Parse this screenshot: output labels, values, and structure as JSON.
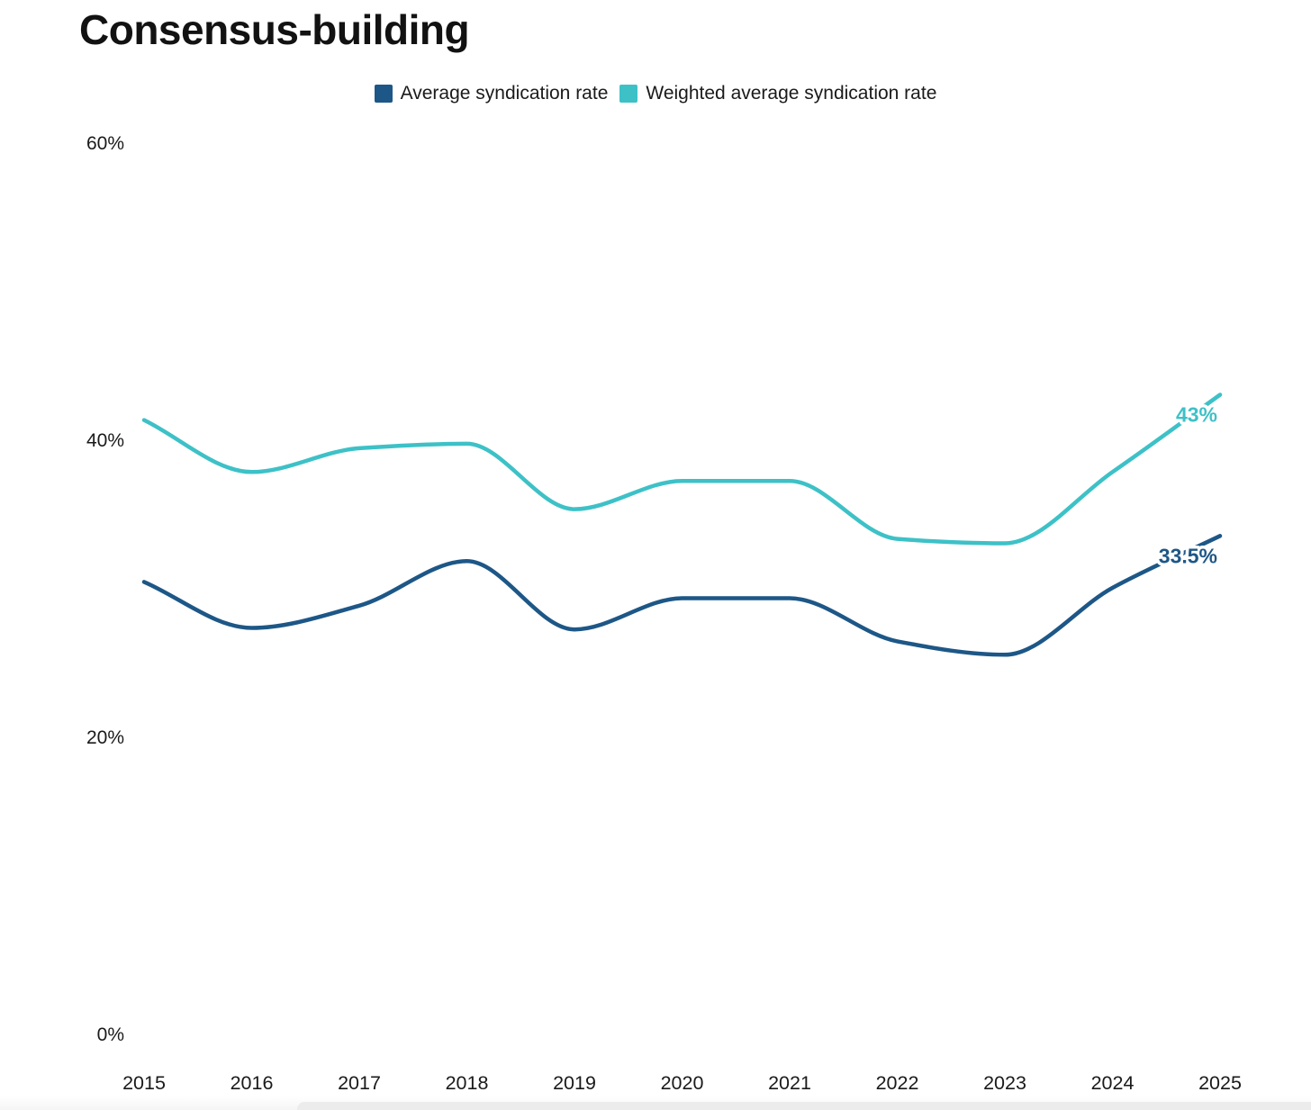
{
  "page_title": "Consensus-building",
  "legend": {
    "items": [
      {
        "label": "Average syndication rate",
        "color": "#1d5787"
      },
      {
        "label": "Weighted average syndication rate",
        "color": "#3dc1c7"
      }
    ]
  },
  "chart_data": {
    "type": "line",
    "title": "Consensus-building",
    "x": [
      2015,
      2016,
      2017,
      2018,
      2019,
      2020,
      2021,
      2022,
      2023,
      2024,
      2025
    ],
    "series": [
      {
        "name": "Average syndication rate",
        "color": "#1d5787",
        "values": [
          30.4,
          27.3,
          28.8,
          31.8,
          27.2,
          29.3,
          29.3,
          26.4,
          25.5,
          30.0,
          33.5
        ],
        "end_label": "33.5%"
      },
      {
        "name": "Weighted average syndication rate",
        "color": "#3dc1c7",
        "values": [
          41.3,
          37.8,
          39.4,
          39.7,
          35.3,
          37.2,
          37.2,
          33.3,
          33.0,
          37.8,
          43.0
        ],
        "end_label": "43%"
      }
    ],
    "xlabel": "",
    "ylabel": "",
    "yticks": [
      {
        "label": "0%",
        "value": 0
      },
      {
        "label": "20%",
        "value": 20
      },
      {
        "label": "40%",
        "value": 40
      },
      {
        "label": "60%",
        "value": 60
      }
    ],
    "ylim": [
      0,
      60
    ],
    "grid": false,
    "legend_position": "top"
  }
}
